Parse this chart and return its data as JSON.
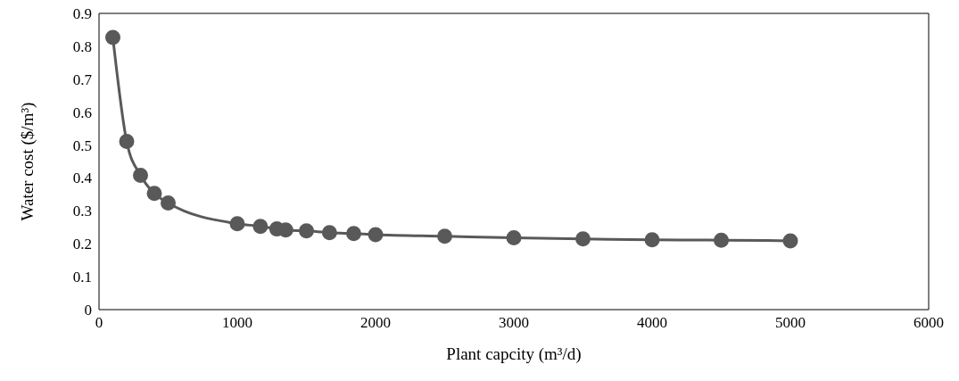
{
  "chart_data": {
    "type": "line",
    "xlabel": "Plant capcity (m³/d)",
    "ylabel": "Water cost ($/m³)",
    "x": [
      100,
      200,
      300,
      400,
      500,
      1000,
      1167,
      1286,
      1350,
      1500,
      1667,
      1842,
      2000,
      2500,
      3000,
      3500,
      4000,
      4500,
      5000
    ],
    "series": [
      {
        "color": "#595959",
        "values": [
          0.827,
          0.511,
          0.408,
          0.353,
          0.324,
          0.261,
          0.253,
          0.245,
          0.242,
          0.239,
          0.234,
          0.231,
          0.228,
          0.223,
          0.218,
          0.215,
          0.212,
          0.211,
          0.209
        ]
      }
    ],
    "xlim": [
      0,
      6000
    ],
    "xticks": [
      0,
      1000,
      2000,
      3000,
      4000,
      5000,
      6000
    ],
    "ylim": [
      0,
      0.9
    ],
    "yticks": [
      0,
      0.1,
      0.2,
      0.3,
      0.4,
      0.5,
      0.6,
      0.7,
      0.8,
      0.9
    ],
    "grid": false,
    "marker": "circle",
    "line_style": "solid"
  }
}
